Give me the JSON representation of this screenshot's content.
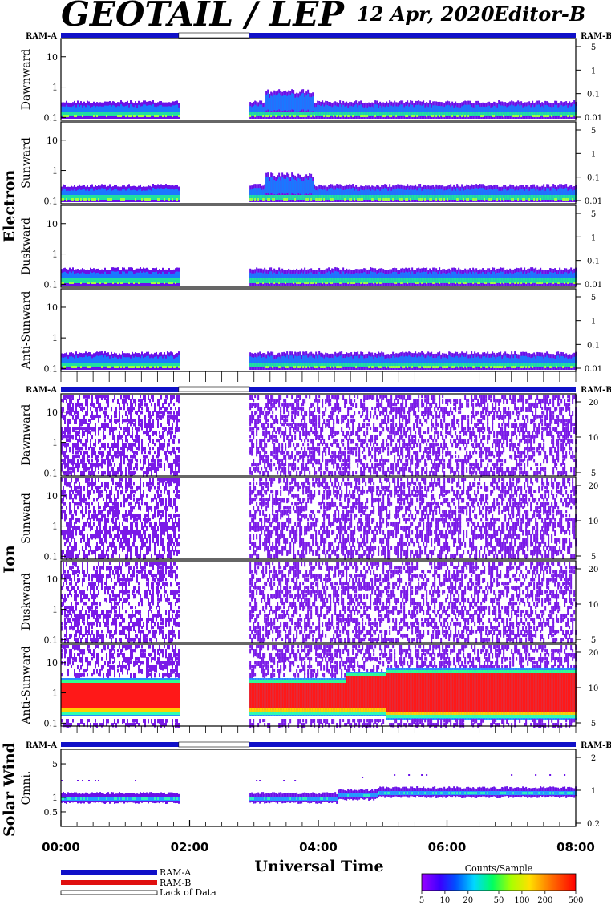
{
  "title": "GEOTAIL / LEP",
  "date_label": "12 Apr, 2020",
  "editor_label": "Editor-B",
  "xlabel": "Universal Time",
  "colors": {
    "ram_a": "#1010c8",
    "ram_b": "#e01010",
    "noise": "#7a1ae8"
  },
  "legend": {
    "items": [
      "RAM-A",
      "RAM-B",
      "Lack of Data"
    ]
  },
  "colorbar": {
    "title": "Counts/Sample",
    "tick_labels": [
      "5",
      "10",
      "20",
      "50",
      "100",
      "200",
      "500"
    ],
    "tick_values": [
      5,
      10,
      20,
      50,
      100,
      200,
      500
    ]
  },
  "chart_data": {
    "type": "heatmap",
    "x_tick_labels": [
      "00:00",
      "02:00",
      "04:00",
      "06:00",
      "08:00"
    ],
    "x_range_hours": [
      0,
      8
    ],
    "data_gap_hours": [
      1.83,
      2.93
    ],
    "groups": [
      {
        "name": "Electron",
        "ram_left": "RAM-A",
        "ram_right": "RAM-B",
        "panels": [
          {
            "label": "Dawnward",
            "kind": "electron",
            "y_ticks": [
              "10",
              "1",
              "0.1"
            ],
            "right_ticks": [
              "5",
              "1",
              "0.1",
              "0.01"
            ]
          },
          {
            "label": "Sunward",
            "kind": "electron",
            "y_ticks": [
              "10",
              "1",
              "0.1"
            ],
            "right_ticks": [
              "5",
              "1",
              "0.1",
              "0.01"
            ]
          },
          {
            "label": "Duskward",
            "kind": "electron",
            "y_ticks": [
              "10",
              "1",
              "0.1"
            ],
            "right_ticks": [
              "5",
              "1",
              "0.1",
              "0.01"
            ]
          },
          {
            "label": "Anti-Sunward",
            "kind": "electron",
            "y_ticks": [
              "10",
              "1",
              "0.1"
            ],
            "right_ticks": [
              "5",
              "1",
              "0.1",
              "0.01"
            ]
          }
        ]
      },
      {
        "name": "Ion",
        "ram_left": "RAM-A",
        "ram_right": "RAM-B",
        "panels": [
          {
            "label": "Dawnward",
            "kind": "ion_noise",
            "y_ticks": [
              "10",
              "1",
              "0.1"
            ],
            "right_ticks": [
              "20",
              "10",
              "5"
            ]
          },
          {
            "label": "Sunward",
            "kind": "ion_noise",
            "y_ticks": [
              "10",
              "1",
              "0.1"
            ],
            "right_ticks": [
              "20",
              "10",
              "5"
            ]
          },
          {
            "label": "Duskward",
            "kind": "ion_noise",
            "y_ticks": [
              "10",
              "1",
              "0.1"
            ],
            "right_ticks": [
              "20",
              "10",
              "5"
            ]
          },
          {
            "label": "Anti-Sunward",
            "kind": "ion_band",
            "y_ticks": [
              "10",
              "1",
              "0.1"
            ],
            "right_ticks": [
              "20",
              "10",
              "5"
            ]
          }
        ]
      },
      {
        "name": "Solar Wind",
        "ram_left": "RAM-A",
        "ram_right": "RAM-B",
        "panels": [
          {
            "label": "Omni.",
            "kind": "solar",
            "y_ticks": [
              "5",
              "1",
              "0.5"
            ],
            "right_ticks": [
              "2",
              "1",
              "0.2"
            ]
          }
        ]
      }
    ]
  }
}
